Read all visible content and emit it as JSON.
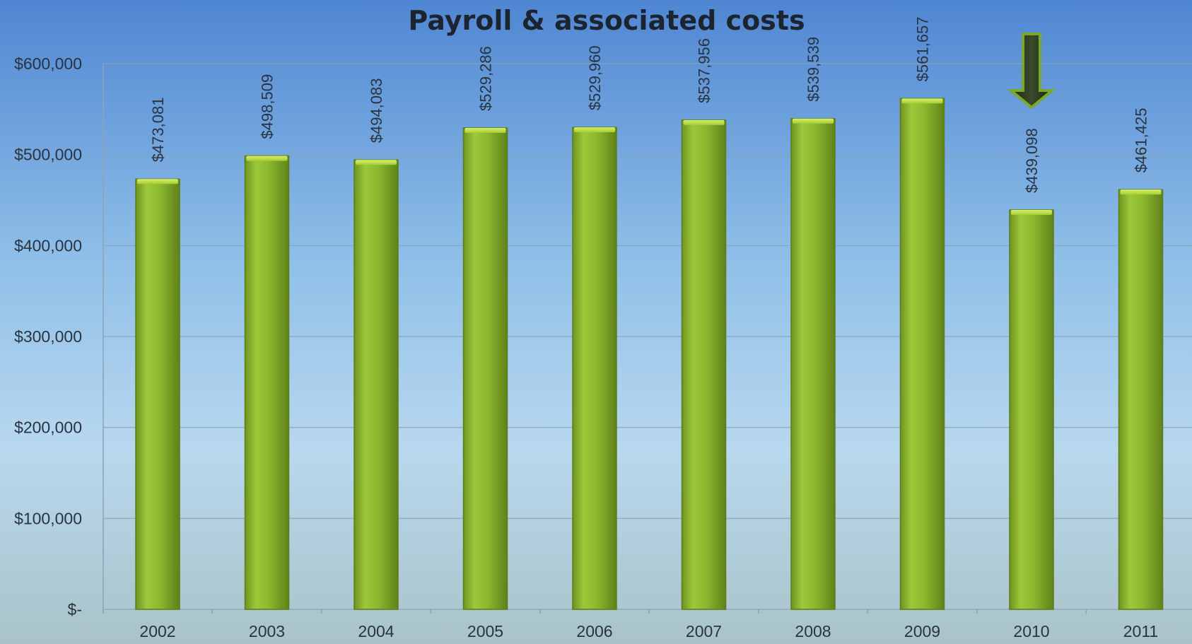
{
  "chart_data": {
    "type": "bar",
    "title": "Payroll & associated costs",
    "categories": [
      "2002",
      "2003",
      "2004",
      "2005",
      "2006",
      "2007",
      "2008",
      "2009",
      "2010",
      "2011"
    ],
    "values": [
      473081,
      498509,
      494083,
      529286,
      529960,
      537956,
      539539,
      561657,
      439098,
      461425
    ],
    "data_labels": [
      "$473,081",
      "$498,509",
      "$494,083",
      "$529,286",
      "$529,960",
      "$537,956",
      "$539,539",
      "$561,657",
      "$439,098",
      "$461,425"
    ],
    "ylim": [
      0,
      600000
    ],
    "y_ticks": [
      0,
      100000,
      200000,
      300000,
      400000,
      500000,
      600000
    ],
    "y_tick_labels": [
      "$-",
      "$100,000",
      "$200,000",
      "$300,000",
      "$400,000",
      "$500,000",
      "$600,000"
    ],
    "grid": true,
    "highlight": {
      "category": "2010",
      "marker": "down-arrow"
    },
    "colors": {
      "bar": "#8cb82e",
      "bar_edge": "#5d7d1a",
      "arrow": "#2c3a20",
      "arrow_edge": "#7aa82a",
      "grid": "#8aa4b8"
    }
  }
}
